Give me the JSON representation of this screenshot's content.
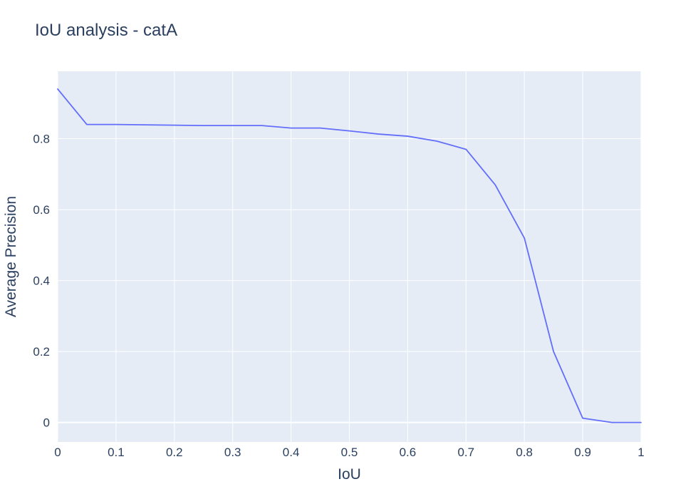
{
  "chart_data": {
    "type": "line",
    "title": "IoU analysis - catA",
    "xlabel": "IoU",
    "ylabel": "Average Precision",
    "xlim": [
      0,
      1
    ],
    "ylim": [
      -0.055,
      0.99
    ],
    "x_ticks": [
      0,
      0.1,
      0.2,
      0.3,
      0.4,
      0.5,
      0.6,
      0.7,
      0.8,
      0.9,
      1
    ],
    "x_tick_labels": [
      "0",
      "0.1",
      "0.2",
      "0.3",
      "0.4",
      "0.5",
      "0.6",
      "0.7",
      "0.8",
      "0.9",
      "1"
    ],
    "y_ticks": [
      0,
      0.2,
      0.4,
      0.6,
      0.8
    ],
    "y_tick_labels": [
      "0",
      "0.2",
      "0.4",
      "0.6",
      "0.8"
    ],
    "grid": true,
    "colors": {
      "plot_background": "#e5ecf6",
      "grid": "#ffffff",
      "line": "#636efa",
      "text": "#2a3f5f"
    },
    "series": [
      {
        "x": [
          0,
          0.05,
          0.1,
          0.15,
          0.2,
          0.25,
          0.3,
          0.35,
          0.4,
          0.45,
          0.5,
          0.55,
          0.6,
          0.65,
          0.7,
          0.75,
          0.8,
          0.85,
          0.9,
          0.95,
          1
        ],
        "y": [
          0.94,
          0.84,
          0.84,
          0.839,
          0.838,
          0.837,
          0.837,
          0.837,
          0.83,
          0.83,
          0.822,
          0.813,
          0.807,
          0.793,
          0.77,
          0.67,
          0.52,
          0.2,
          0.012,
          0.0,
          0.0
        ]
      }
    ]
  }
}
